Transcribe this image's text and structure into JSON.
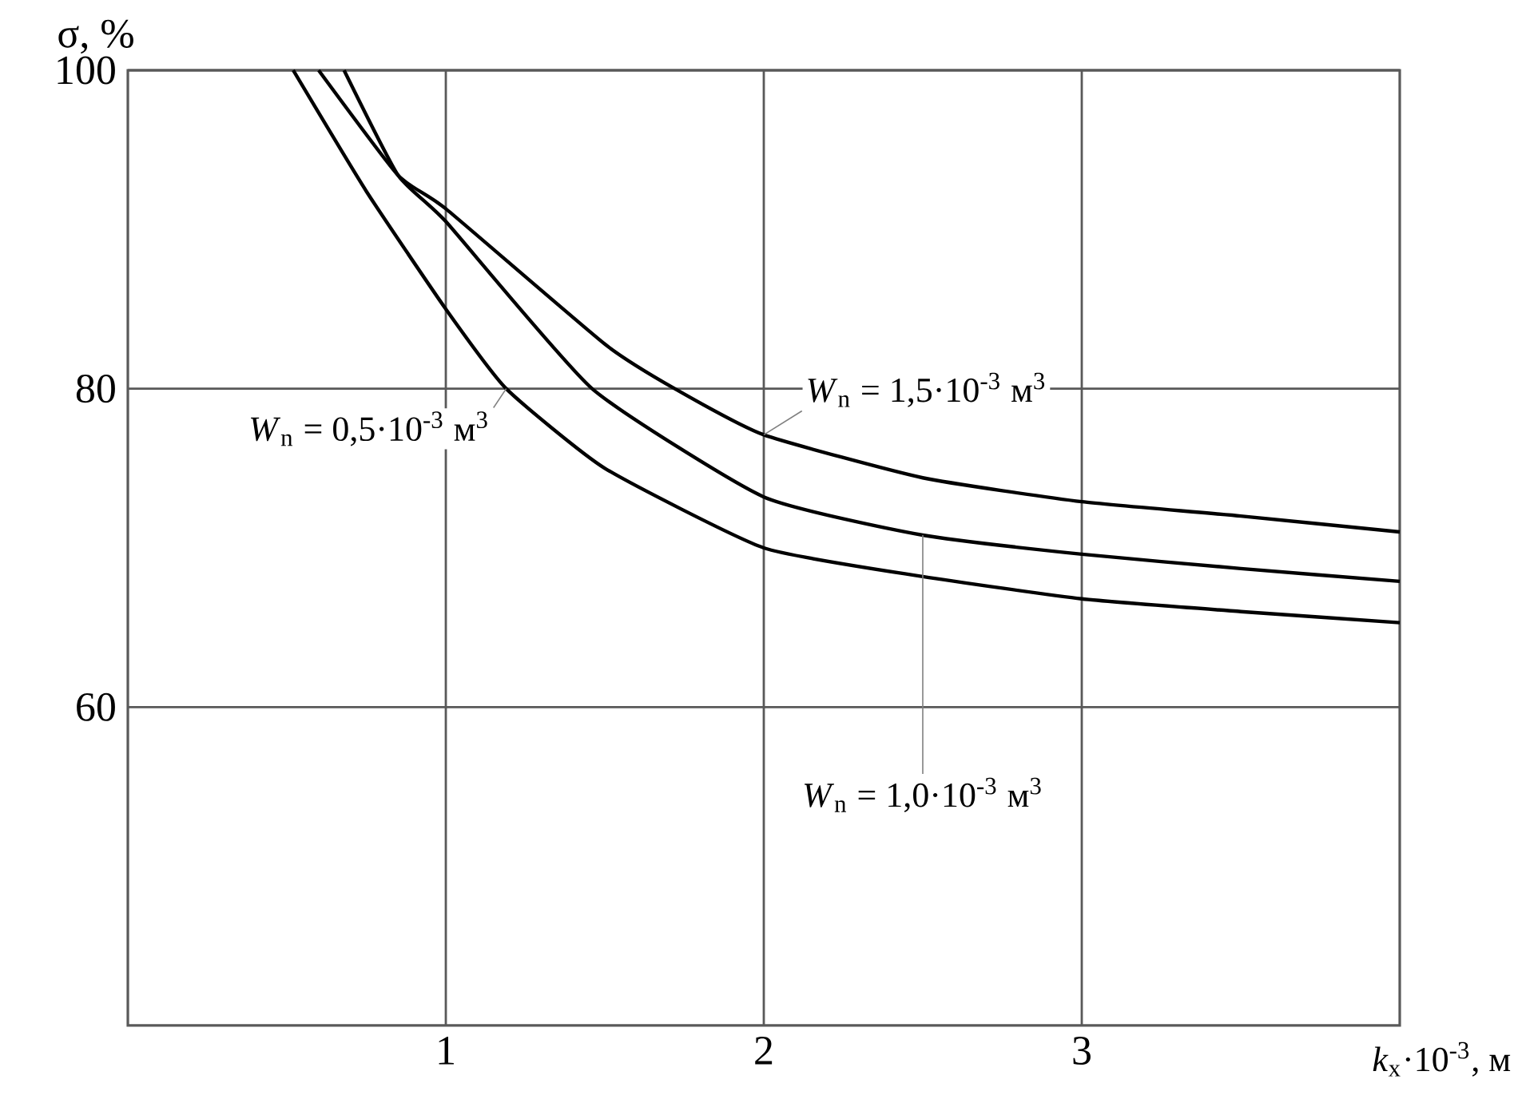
{
  "chart_data": {
    "type": "line",
    "xlabel": "*k*$_{x}$·10$^{-3}$, м",
    "ylabel": "σ, %",
    "xlim": [
      0,
      4
    ],
    "ylim": [
      40,
      100
    ],
    "xticks": [
      1,
      2,
      3
    ],
    "yticks": [
      60,
      80,
      100
    ],
    "grid": true,
    "marker": "none",
    "line_style": "solid",
    "series": [
      {
        "name": "*W*$_{n}$ = 0,5·10$^{-3}$ м$^{3}$",
        "color": "#000000",
        "x": [
          0.52,
          0.75,
          1,
          1.19,
          1.5,
          2,
          2.5,
          3,
          3.5,
          4
        ],
        "values": [
          100,
          92.4,
          85,
          80,
          75,
          70,
          68.2,
          66.8,
          66,
          65.3
        ]
      },
      {
        "name": "*W*$_{n}$ = 1,0·10$^{-3}$ м$^{3}$",
        "color": "#000000",
        "x": [
          0.68,
          0.85,
          1,
          1.46,
          2,
          2.5,
          3,
          3.5,
          4
        ],
        "values": [
          100,
          93.4,
          90.5,
          80,
          73.2,
          70.8,
          69.6,
          68.7,
          67.9
        ]
      },
      {
        "name": "*W*$_{n}$ = 1,5·10$^{-3}$ м$^{3}$",
        "color": "#000000",
        "x": [
          0.6,
          0.85,
          1,
          1.5,
          1.72,
          2,
          2.5,
          3,
          3.5,
          4
        ],
        "values": [
          100,
          93.4,
          91.3,
          82.8,
          80,
          77.1,
          74.4,
          72.9,
          72,
          71
        ]
      }
    ]
  }
}
